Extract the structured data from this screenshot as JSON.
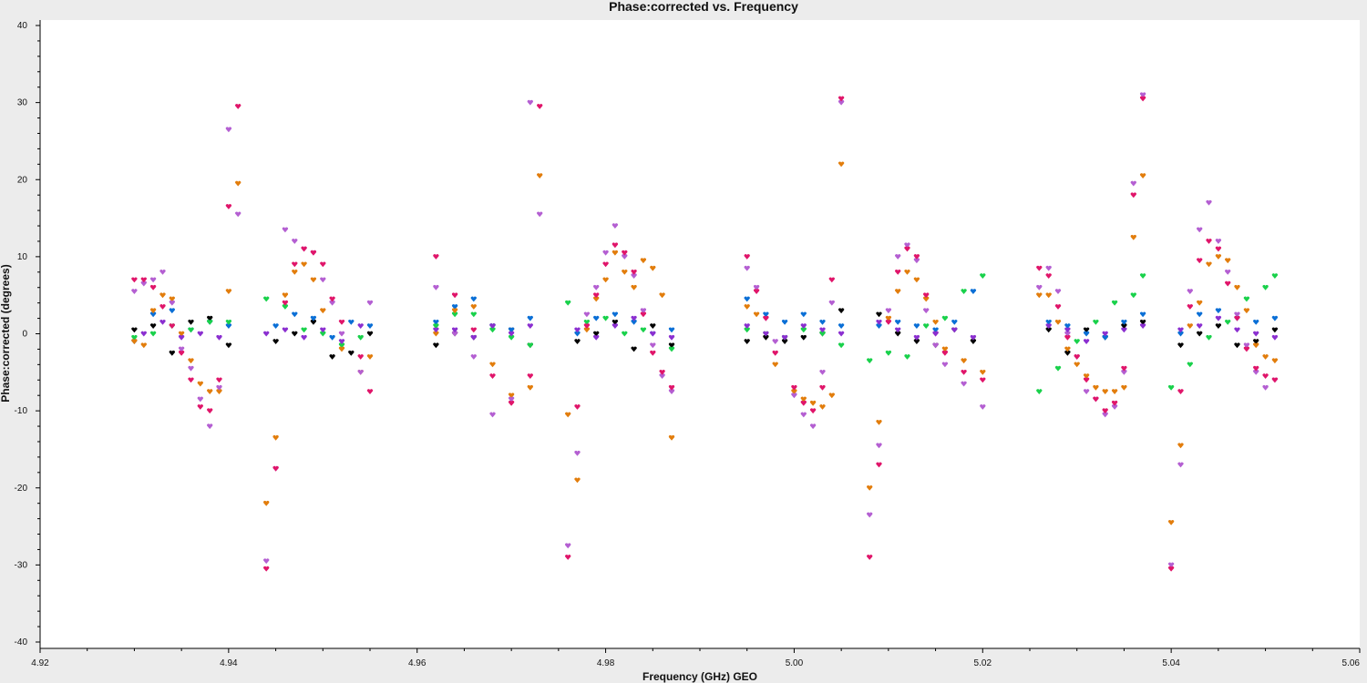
{
  "chart_data": {
    "type": "scatter",
    "title": "Phase:corrected vs. Frequency",
    "xlabel": "Frequency (GHz) GEO",
    "ylabel": "Phase:corrected (degrees)",
    "xlim": [
      4.92,
      5.06
    ],
    "ylim": [
      -40,
      40
    ],
    "xticks": [
      "4.92",
      "4.94",
      "4.96",
      "4.98",
      "5.00",
      "5.02",
      "5.04",
      "5.06"
    ],
    "yticks": [
      "40",
      "30",
      "20",
      "10",
      "0",
      "-10",
      "-20",
      "-30",
      "-40"
    ],
    "grid": false,
    "legend": "none",
    "marker": "small heart-shaped points",
    "series": [
      {
        "color": "#000000",
        "x": [
          4.93,
          4.932,
          4.934,
          4.936,
          4.938,
          4.94,
          4.945,
          4.947,
          4.949,
          4.951,
          4.953,
          4.955,
          4.962,
          4.964,
          4.966,
          4.968,
          4.97,
          4.972,
          4.977,
          4.979,
          4.981,
          4.983,
          4.985,
          4.987,
          4.995,
          4.997,
          4.999,
          5.001,
          5.003,
          5.005,
          5.009,
          5.011,
          5.013,
          5.015,
          5.017,
          5.019,
          5.027,
          5.029,
          5.031,
          5.033,
          5.035,
          5.037,
          5.041,
          5.043,
          5.045,
          5.047,
          5.049,
          5.051
        ],
        "y": [
          0.5,
          1.0,
          -2.5,
          1.5,
          2.0,
          -1.5,
          -1.0,
          0.0,
          1.5,
          -3.0,
          -2.5,
          0.0,
          -1.5,
          0.0,
          -0.5,
          1.0,
          0.5,
          -1.5,
          -1.0,
          0.0,
          1.5,
          -2.0,
          1.0,
          -1.5,
          -1.0,
          -0.5,
          -1.0,
          -0.5,
          0.0,
          3.0,
          2.5,
          0.0,
          -1.0,
          -1.5,
          0.5,
          -1.0,
          0.5,
          -2.5,
          0.5,
          -0.5,
          1.0,
          1.5,
          -1.5,
          0.0,
          1.0,
          -1.5,
          -1.0,
          0.5
        ]
      },
      {
        "color": "#0a6fd6",
        "x": [
          4.93,
          4.932,
          4.934,
          4.936,
          4.938,
          4.94,
          4.945,
          4.947,
          4.949,
          4.951,
          4.953,
          4.955,
          4.962,
          4.964,
          4.966,
          4.968,
          4.97,
          4.972,
          4.977,
          4.979,
          4.981,
          4.983,
          4.985,
          4.987,
          4.995,
          4.997,
          4.999,
          5.001,
          5.003,
          5.005,
          5.009,
          5.011,
          5.013,
          5.015,
          5.017,
          5.019,
          5.027,
          5.029,
          5.031,
          5.033,
          5.035,
          5.037,
          5.041,
          5.043,
          5.045,
          5.047,
          5.049,
          5.051
        ],
        "y": [
          -1.0,
          2.5,
          3.0,
          0.5,
          1.5,
          1.0,
          1.0,
          2.5,
          2.0,
          -0.5,
          1.5,
          1.0,
          1.5,
          3.5,
          4.5,
          1.0,
          0.5,
          2.0,
          0.0,
          2.0,
          2.5,
          1.5,
          0.0,
          0.5,
          4.5,
          2.5,
          1.5,
          2.5,
          1.5,
          1.0,
          1.0,
          1.5,
          1.0,
          0.5,
          1.5,
          5.5,
          1.5,
          1.0,
          0.0,
          -0.5,
          1.5,
          2.5,
          0.0,
          2.5,
          3.0,
          2.0,
          1.5,
          2.0
        ]
      },
      {
        "color": "#19d14b",
        "x": [
          4.93,
          4.932,
          4.934,
          4.936,
          4.938,
          4.94,
          4.944,
          4.946,
          4.948,
          4.95,
          4.952,
          4.954,
          4.962,
          4.964,
          4.966,
          4.968,
          4.97,
          4.972,
          4.976,
          4.978,
          4.98,
          4.982,
          4.984,
          4.987,
          4.995,
          4.997,
          4.999,
          5.001,
          5.003,
          5.005,
          5.008,
          5.01,
          5.012,
          5.014,
          5.016,
          5.018,
          5.02,
          5.026,
          5.028,
          5.03,
          5.032,
          5.034,
          5.036,
          5.037,
          5.04,
          5.042,
          5.044,
          5.046,
          5.048,
          5.05,
          5.051
        ],
        "y": [
          -0.5,
          0.0,
          1.0,
          0.5,
          1.5,
          1.5,
          4.5,
          3.5,
          0.5,
          0.0,
          -1.5,
          -0.5,
          1.0,
          2.5,
          2.5,
          0.5,
          -0.5,
          -1.5,
          4.0,
          1.5,
          2.0,
          0.0,
          0.5,
          -2.0,
          0.5,
          0.0,
          -0.5,
          0.5,
          0.0,
          -1.5,
          -3.5,
          -2.5,
          -3.0,
          1.0,
          2.0,
          5.5,
          7.5,
          -7.5,
          -4.5,
          -1.0,
          1.5,
          4.0,
          5.0,
          7.5,
          -7.0,
          -4.0,
          -0.5,
          1.5,
          4.5,
          6.0,
          7.5
        ]
      },
      {
        "color": "#e27d0c",
        "x": [
          4.93,
          4.931,
          4.932,
          4.933,
          4.934,
          4.935,
          4.936,
          4.937,
          4.938,
          4.939,
          4.94,
          4.941,
          4.944,
          4.945,
          4.946,
          4.947,
          4.948,
          4.949,
          4.95,
          4.952,
          4.954,
          4.955,
          4.962,
          4.964,
          4.966,
          4.968,
          4.97,
          4.972,
          4.973,
          4.976,
          4.977,
          4.978,
          4.979,
          4.98,
          4.981,
          4.982,
          4.983,
          4.984,
          4.985,
          4.986,
          4.987,
          4.995,
          4.996,
          4.998,
          5.0,
          5.001,
          5.002,
          5.003,
          5.004,
          5.005,
          5.008,
          5.009,
          5.01,
          5.011,
          5.012,
          5.013,
          5.014,
          5.015,
          5.016,
          5.018,
          5.02,
          5.026,
          5.027,
          5.028,
          5.029,
          5.03,
          5.031,
          5.032,
          5.033,
          5.034,
          5.035,
          5.036,
          5.037,
          5.04,
          5.041,
          5.042,
          5.043,
          5.044,
          5.045,
          5.046,
          5.047,
          5.048,
          5.049,
          5.05,
          5.051
        ],
        "y": [
          -1.0,
          -1.5,
          3.0,
          5.0,
          4.5,
          0.0,
          -3.5,
          -6.5,
          -7.5,
          -7.5,
          5.5,
          19.5,
          -22.0,
          -13.5,
          5.0,
          8.0,
          9.0,
          7.0,
          3.0,
          -2.0,
          -5.0,
          -3.0,
          0.0,
          3.0,
          3.5,
          -4.0,
          -8.0,
          -7.0,
          20.5,
          -10.5,
          -19.0,
          0.5,
          4.5,
          7.0,
          10.5,
          8.0,
          6.0,
          9.5,
          8.5,
          5.0,
          -13.5,
          3.5,
          2.5,
          -4.0,
          -7.5,
          -8.5,
          -9.0,
          -9.5,
          -8.0,
          22.0,
          -20.0,
          -11.5,
          2.0,
          5.5,
          8.0,
          7.0,
          4.5,
          1.5,
          -2.0,
          -3.5,
          -5.0,
          5.0,
          5.0,
          1.5,
          -2.0,
          -4.0,
          -5.5,
          -7.0,
          -7.5,
          -7.5,
          -7.0,
          12.5,
          20.5,
          -24.5,
          -14.5,
          1.0,
          4.0,
          9.0,
          10.0,
          9.5,
          6.0,
          3.0,
          -1.5,
          -3.0,
          -3.5
        ]
      },
      {
        "color": "#b45fd2",
        "x": [
          4.93,
          4.931,
          4.932,
          4.933,
          4.934,
          4.935,
          4.936,
          4.937,
          4.938,
          4.939,
          4.94,
          4.941,
          4.944,
          4.945,
          4.946,
          4.947,
          4.948,
          4.949,
          4.95,
          4.951,
          4.952,
          4.954,
          4.955,
          4.962,
          4.964,
          4.966,
          4.968,
          4.97,
          4.972,
          4.973,
          4.976,
          4.977,
          4.978,
          4.979,
          4.98,
          4.981,
          4.982,
          4.983,
          4.984,
          4.985,
          4.986,
          4.987,
          4.995,
          4.996,
          4.997,
          4.998,
          5.0,
          5.001,
          5.002,
          5.003,
          5.004,
          5.005,
          5.008,
          5.009,
          5.01,
          5.011,
          5.012,
          5.013,
          5.014,
          5.015,
          5.016,
          5.018,
          5.02,
          5.026,
          5.027,
          5.028,
          5.029,
          5.03,
          5.031,
          5.032,
          5.033,
          5.034,
          5.035,
          5.036,
          5.037,
          5.04,
          5.041,
          5.042,
          5.043,
          5.044,
          5.045,
          5.046,
          5.047,
          5.048,
          5.049,
          5.05,
          5.051
        ],
        "y": [
          5.5,
          6.5,
          7.0,
          8.0,
          4.0,
          -2.0,
          -4.5,
          -8.5,
          -12.0,
          -7.0,
          26.5,
          15.5,
          -29.5,
          -17.5,
          13.5,
          12.0,
          11.0,
          10.5,
          7.0,
          4.0,
          0.0,
          -5.0,
          4.0,
          6.0,
          0.0,
          -3.0,
          -10.5,
          -8.5,
          30.0,
          15.5,
          -27.5,
          -15.5,
          2.5,
          6.0,
          10.5,
          14.0,
          10.0,
          7.5,
          3.0,
          -1.5,
          -5.5,
          -7.5,
          8.5,
          6.0,
          2.0,
          -1.0,
          -8.0,
          -10.5,
          -12.0,
          -5.0,
          4.0,
          30.0,
          -23.5,
          -14.5,
          3.0,
          10.0,
          11.5,
          9.5,
          3.0,
          -1.5,
          -4.0,
          -6.5,
          -9.5,
          6.0,
          8.5,
          5.5,
          0.0,
          -3.0,
          -7.5,
          -8.5,
          -10.5,
          -9.5,
          -5.0,
          19.5,
          31.0,
          -30.0,
          -17.0,
          5.5,
          13.5,
          17.0,
          12.0,
          8.0,
          2.5,
          -1.5,
          -5.0,
          -7.0,
          -6.0
        ]
      },
      {
        "color": "#e0156a",
        "x": [
          4.93,
          4.931,
          4.932,
          4.933,
          4.934,
          4.935,
          4.936,
          4.937,
          4.938,
          4.939,
          4.94,
          4.941,
          4.944,
          4.945,
          4.946,
          4.947,
          4.948,
          4.949,
          4.95,
          4.951,
          4.952,
          4.954,
          4.955,
          4.962,
          4.964,
          4.966,
          4.968,
          4.97,
          4.972,
          4.973,
          4.976,
          4.977,
          4.978,
          4.979,
          4.98,
          4.981,
          4.982,
          4.983,
          4.984,
          4.985,
          4.986,
          4.987,
          4.995,
          4.996,
          4.997,
          4.998,
          5.0,
          5.001,
          5.002,
          5.003,
          5.004,
          5.005,
          5.008,
          5.009,
          5.01,
          5.011,
          5.012,
          5.013,
          5.014,
          5.015,
          5.016,
          5.018,
          5.02,
          5.026,
          5.027,
          5.028,
          5.029,
          5.03,
          5.031,
          5.032,
          5.033,
          5.034,
          5.035,
          5.036,
          5.037,
          5.04,
          5.041,
          5.042,
          5.043,
          5.044,
          5.045,
          5.046,
          5.047,
          5.048,
          5.049,
          5.05,
          5.051
        ],
        "y": [
          7.0,
          7.0,
          6.0,
          3.5,
          1.0,
          -2.5,
          -6.0,
          -9.5,
          -10.0,
          -6.0,
          16.5,
          29.5,
          -30.5,
          -17.5,
          4.0,
          9.0,
          11.0,
          10.5,
          9.0,
          4.5,
          1.5,
          -3.0,
          -7.5,
          10.0,
          5.0,
          0.5,
          -5.5,
          -9.0,
          -5.5,
          29.5,
          -29.0,
          -9.5,
          1.0,
          5.0,
          9.0,
          11.5,
          10.5,
          8.0,
          2.5,
          -2.5,
          -5.0,
          -7.0,
          10.0,
          5.5,
          2.0,
          -2.5,
          -7.0,
          -9.0,
          -10.0,
          -7.0,
          7.0,
          30.5,
          -29.0,
          -17.0,
          1.5,
          8.0,
          11.0,
          10.0,
          5.0,
          0.0,
          -2.5,
          -5.0,
          -6.0,
          8.5,
          7.5,
          3.5,
          -0.5,
          -3.0,
          -6.0,
          -8.5,
          -10.0,
          -9.0,
          -4.5,
          18.0,
          30.5,
          -30.5,
          -7.5,
          3.5,
          9.5,
          12.0,
          11.0,
          6.5,
          2.0,
          -2.0,
          -4.5,
          -5.5,
          -6.0
        ]
      },
      {
        "color": "#8b2fd0",
        "x": [
          4.931,
          4.933,
          4.935,
          4.937,
          4.939,
          4.944,
          4.946,
          4.948,
          4.95,
          4.952,
          4.954,
          4.962,
          4.964,
          4.966,
          4.968,
          4.97,
          4.972,
          4.977,
          4.979,
          4.981,
          4.983,
          4.985,
          4.987,
          4.995,
          4.997,
          4.999,
          5.001,
          5.003,
          5.005,
          5.009,
          5.011,
          5.013,
          5.015,
          5.017,
          5.019,
          5.027,
          5.029,
          5.031,
          5.033,
          5.035,
          5.037,
          5.041,
          5.043,
          5.045,
          5.047,
          5.049,
          5.051
        ],
        "y": [
          0.0,
          1.5,
          -0.5,
          0.0,
          -0.5,
          0.0,
          0.5,
          -0.5,
          0.5,
          -1.0,
          1.0,
          0.5,
          0.5,
          -0.5,
          1.0,
          0.0,
          1.0,
          0.5,
          -0.5,
          1.0,
          2.0,
          0.0,
          -0.5,
          1.0,
          0.0,
          -0.5,
          1.0,
          0.5,
          0.0,
          1.5,
          0.5,
          -0.5,
          0.0,
          0.5,
          -0.5,
          1.0,
          0.5,
          -1.0,
          0.0,
          0.5,
          1.0,
          0.5,
          1.0,
          2.0,
          0.5,
          0.0,
          -0.5
        ]
      }
    ]
  }
}
